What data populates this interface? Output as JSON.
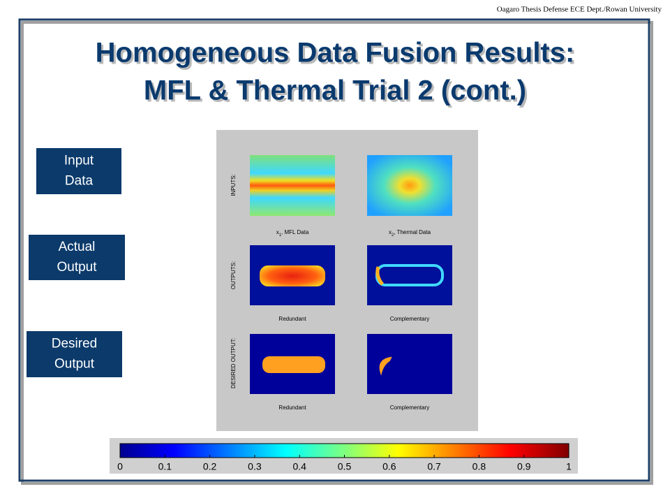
{
  "header": {
    "credit": "Oagaro Thesis Defense ECE Dept./Rowan University"
  },
  "title": {
    "line1": "Homogeneous Data Fusion Results:",
    "line2": "MFL & Thermal Trial 2 (cont.)"
  },
  "side_labels": [
    [
      "Input",
      "Data"
    ],
    [
      "Actual",
      "Output"
    ],
    [
      "Desired",
      "Output"
    ]
  ],
  "figure": {
    "row_labels": [
      "INPUTS:",
      "OUTPUTS:",
      "DESIRED OUTPUT:"
    ],
    "input_captions": [
      {
        "var": "x",
        "sub": "1",
        "text": ", MFL Data"
      },
      {
        "var": "x",
        "sub": "2",
        "text": ", Thermal Data"
      }
    ],
    "output_captions": [
      "Redundant",
      "Complementary"
    ],
    "desired_captions": [
      "Redundant",
      "Complementary"
    ]
  },
  "colorbar": {
    "ticks": [
      "0",
      "0.1",
      "0.2",
      "0.3",
      "0.4",
      "0.5",
      "0.6",
      "0.7",
      "0.8",
      "0.9",
      "1"
    ]
  }
}
